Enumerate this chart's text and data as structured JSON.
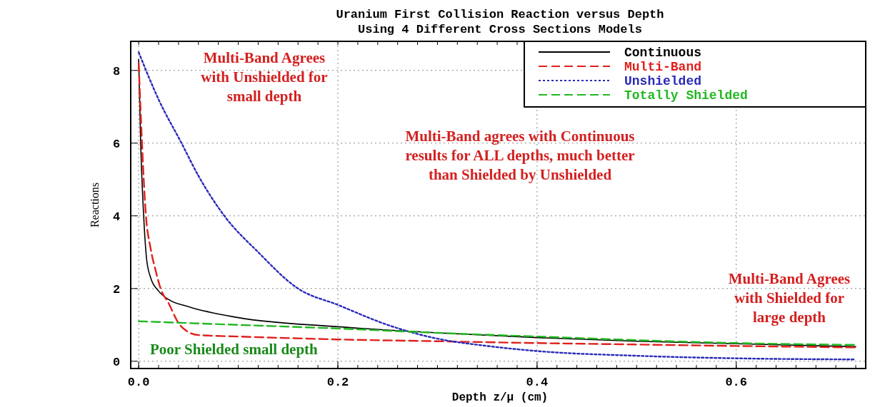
{
  "chart_data": {
    "type": "line",
    "title": "Uranium First Collision Reaction versus Depth",
    "subtitle": "Using 4 Different Cross Sections Models",
    "xlabel": "Depth z/μ (cm)",
    "ylabel": "Reactions",
    "xlim": [
      -0.008,
      0.73
    ],
    "ylim": [
      -0.2,
      8.8
    ],
    "xticks": [
      {
        "value": 0,
        "label": "0.0"
      },
      {
        "value": 0.2,
        "label": "0.2"
      },
      {
        "value": 0.4,
        "label": "0.4"
      },
      {
        "value": 0.6,
        "label": "0.6"
      }
    ],
    "yticks": [
      0,
      2,
      4,
      6,
      8
    ],
    "grid": true,
    "legend": "top right",
    "series": [
      {
        "name": "Continuous",
        "color": "#000000",
        "line_style": "solid",
        "x": [
          0,
          0.002,
          0.005,
          0.008,
          0.012,
          0.02,
          0.03,
          0.05,
          0.1,
          0.2,
          0.3,
          0.4,
          0.5,
          0.6,
          0.72
        ],
        "values": [
          8.3,
          6.0,
          4.0,
          2.8,
          2.3,
          1.93,
          1.7,
          1.5,
          1.2,
          0.95,
          0.78,
          0.65,
          0.55,
          0.48,
          0.4
        ]
      },
      {
        "name": "Multi-Band",
        "color": "#e0201c",
        "line_style": "dashed",
        "x": [
          0,
          0.003,
          0.007,
          0.012,
          0.017,
          0.022,
          0.03,
          0.04,
          0.05,
          0.06,
          0.1,
          0.2,
          0.3,
          0.4,
          0.5,
          0.6,
          0.72
        ],
        "values": [
          8.2,
          6.2,
          4.1,
          3.1,
          2.5,
          2.0,
          1.6,
          1.05,
          0.8,
          0.72,
          0.68,
          0.6,
          0.55,
          0.5,
          0.46,
          0.42,
          0.38
        ]
      },
      {
        "name": "Unshielded",
        "color": "#2a2ab8",
        "line_style": "dotted",
        "x": [
          0,
          0.02,
          0.043,
          0.06,
          0.086,
          0.12,
          0.16,
          0.2,
          0.25,
          0.28,
          0.3,
          0.35,
          0.4,
          0.5,
          0.6,
          0.72
        ],
        "values": [
          8.5,
          7.2,
          6.0,
          5.1,
          4.0,
          3.0,
          2.0,
          1.55,
          1.0,
          0.75,
          0.62,
          0.42,
          0.28,
          0.15,
          0.08,
          0.05
        ]
      },
      {
        "name": "Totally Shielded",
        "color": "#22b822",
        "line_style": "dashed",
        "x": [
          0,
          0.1,
          0.2,
          0.3,
          0.4,
          0.5,
          0.6,
          0.72
        ],
        "values": [
          1.1,
          1.0,
          0.9,
          0.78,
          0.68,
          0.58,
          0.5,
          0.45
        ]
      }
    ],
    "annotations": [
      "Multi-Band Agrees\nwith Unshielded for\nsmall depth",
      "Multi-Band agrees with Continuous\nresults for ALL depths, much better\nthan Shielded by Unshielded",
      "Multi-Band Agrees\nwith Shielded for\nlarge depth",
      "Poor Shielded small depth"
    ]
  }
}
